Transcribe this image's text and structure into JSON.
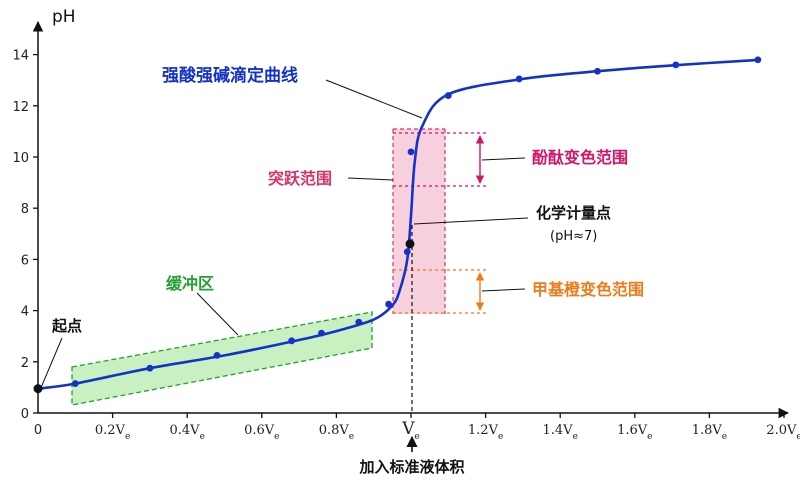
{
  "chart_data": {
    "type": "line",
    "ylabel": "pH",
    "ylim": [
      0,
      15
    ],
    "yticks": [
      "0",
      "2",
      "4",
      "6",
      "8",
      "10",
      "12",
      "14"
    ],
    "xlim": [
      0,
      2.0
    ],
    "xticks": [
      {
        "v": 0,
        "label": "0"
      },
      {
        "v": 0.2,
        "label": "0.2V",
        "sub": "e"
      },
      {
        "v": 0.4,
        "label": "0.4V",
        "sub": "e"
      },
      {
        "v": 0.6,
        "label": "0.6V",
        "sub": "e"
      },
      {
        "v": 0.8,
        "label": "0.8V",
        "sub": "e"
      },
      {
        "v": 1.0,
        "label": "V",
        "sub": "e"
      },
      {
        "v": 1.2,
        "label": "1.2V",
        "sub": "e"
      },
      {
        "v": 1.4,
        "label": "1.4V",
        "sub": "e"
      },
      {
        "v": 1.6,
        "label": "1.6V",
        "sub": "e"
      },
      {
        "v": 1.8,
        "label": "1.8V",
        "sub": "e"
      },
      {
        "v": 2.0,
        "label": "2.0V",
        "sub": "e"
      }
    ],
    "xlabel": "加入标准液体积",
    "series": [
      {
        "name": "强酸强碱滴定曲线",
        "color": "#1432c8",
        "curve": [
          [
            0,
            0.95
          ],
          [
            0.1,
            1.15
          ],
          [
            0.3,
            1.75
          ],
          [
            0.5,
            2.25
          ],
          [
            0.7,
            2.85
          ],
          [
            0.8,
            3.2
          ],
          [
            0.9,
            3.65
          ],
          [
            0.95,
            4.2
          ],
          [
            0.97,
            4.8
          ],
          [
            0.99,
            6.0
          ],
          [
            1.0,
            7.7
          ],
          [
            1.01,
            9.8
          ],
          [
            1.03,
            11.2
          ],
          [
            1.1,
            12.45
          ],
          [
            1.3,
            13.05
          ],
          [
            1.5,
            13.35
          ],
          [
            1.7,
            13.58
          ],
          [
            1.92,
            13.78
          ]
        ],
        "markers": [
          [
            0.1,
            1.15
          ],
          [
            0.3,
            1.75
          ],
          [
            0.48,
            2.25
          ],
          [
            0.68,
            2.82
          ],
          [
            0.76,
            3.12
          ],
          [
            0.86,
            3.55
          ],
          [
            0.94,
            4.25
          ],
          [
            0.99,
            6.3
          ],
          [
            1.0,
            10.2
          ],
          [
            1.1,
            12.4
          ],
          [
            1.29,
            13.05
          ],
          [
            1.5,
            13.35
          ],
          [
            1.71,
            13.6
          ],
          [
            1.93,
            13.8
          ]
        ]
      }
    ],
    "key_points": [
      {
        "name": "起点",
        "x": 0,
        "y": 0.95
      },
      {
        "name": "化学计量点",
        "x": 1.0,
        "y": 7.7
      }
    ],
    "regions": [
      {
        "name": "缓冲区",
        "color": "#22a033"
      },
      {
        "name": "突跃范围",
        "y_range": [
          4.2,
          11.4
        ],
        "color": "#d9346a"
      },
      {
        "name": "酚酞变色范围",
        "y_range": [
          9.2,
          11.3
        ],
        "color": "#d4146a"
      },
      {
        "name": "甲基橙变色范围",
        "y_range": [
          4.2,
          5.9
        ],
        "color": "#f07a1a"
      }
    ]
  },
  "labels": {
    "y_axis": "pH",
    "x_axis_title": "加入标准液体积",
    "curve_title": "强酸强碱滴定曲线",
    "start_point": "起点",
    "buffer_zone": "缓冲区",
    "jump_range": "突跃范围",
    "equivalence_point": "化学计量点",
    "equivalence_ph": "(pH≈7)",
    "phenolphthalein": "酚酞变色范围",
    "methyl_orange": "甲基橙变色范围"
  },
  "colors": {
    "curve": "#1432c8",
    "curve_title": "#1432c8",
    "buffer": "#22a033",
    "buffer_fill": "#c8f0c0",
    "jump": "#d9346a",
    "jump_fill": "#f7d0de",
    "phenolphthalein": "#d4146a",
    "methyl_orange": "#f07a1a",
    "axis": "#111111"
  }
}
